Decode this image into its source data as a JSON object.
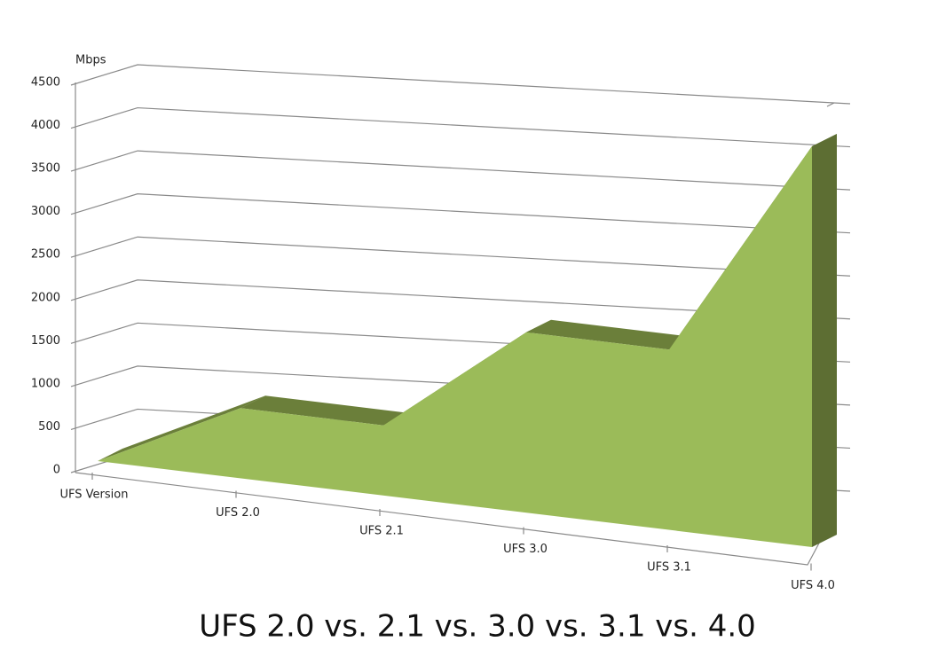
{
  "chart_data": {
    "type": "area3d",
    "title": "UFS 2.0 vs. 2.1 vs. 3.0 vs. 3.1 vs. 4.0",
    "y_label": "Mbps",
    "categories": [
      "UFS Version",
      "UFS 2.0",
      "UFS 2.1",
      "UFS 3.0",
      "UFS 3.1",
      "UFS 4.0"
    ],
    "values": [
      0,
      700,
      700,
      1800,
      1800,
      4000
    ],
    "color": "#9bbb59",
    "ylim": [
      0,
      4500
    ],
    "yticks": [
      0,
      500,
      1000,
      1500,
      2000,
      2500,
      3000,
      3500,
      4000,
      4500
    ],
    "grid": true
  }
}
